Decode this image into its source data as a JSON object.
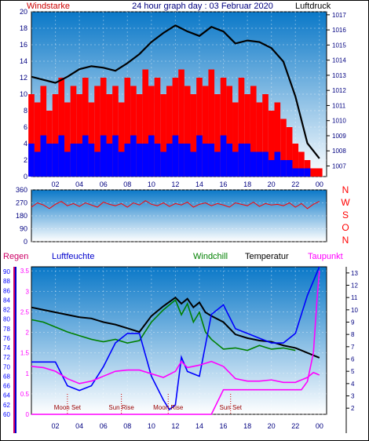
{
  "header": {
    "left": "Windstarke",
    "title": "24 hour graph day : 03 Februar 2020",
    "right": "Luftdruck"
  },
  "bottom_header": {
    "regen": "Regen",
    "luftfeuchte": "Luftfeuchte",
    "windchill": "Windchill",
    "temperatur": "Temperatur",
    "taupunkt": "Taupunkt"
  },
  "colors": {
    "panel_top": "#0a78c8",
    "panel_bottom": "#ffffff",
    "wind_gust": "#ff0000",
    "wind_avg": "#0000ff",
    "pressure": "#000000",
    "direction": "#ff0000",
    "temperature": "#000000",
    "windchill": "#008000",
    "humidity": "#0000ff",
    "dewpoint": "#ff00ff",
    "rain": "#ff00ff",
    "left_axis_text": "#000080",
    "right_axis_text": "#000080",
    "direction_label": "#ff0000"
  },
  "chart_data": [
    {
      "type": "line",
      "name": "wind_and_pressure",
      "x_ticks": [
        "02",
        "04",
        "06",
        "08",
        "10",
        "12",
        "14",
        "16",
        "18",
        "20",
        "22",
        "00"
      ],
      "ylim_left": [
        0,
        20
      ],
      "yticks_left": [
        "0",
        "2",
        "4",
        "6",
        "8",
        "10",
        "12",
        "14",
        "16",
        "18",
        "20"
      ],
      "ylim_right": [
        1006.3,
        1017.2
      ],
      "yticks_right": [
        "1007",
        "1008",
        "1009",
        "1010",
        "1011",
        "1012",
        "1013",
        "1014",
        "1015",
        "1016",
        "1017"
      ],
      "series": [
        {
          "name": "Windstarke",
          "axis": "left",
          "x": [
            0,
            0.5,
            1,
            1.5,
            2,
            2.5,
            3,
            3.5,
            4,
            4.5,
            5,
            5.5,
            6,
            6.5,
            7,
            7.5,
            8,
            8.5,
            9,
            9.5,
            10,
            10.5,
            11,
            11.5,
            12,
            12.5,
            13,
            13.5,
            14,
            14.5,
            15,
            15.5,
            16,
            16.5,
            17,
            17.5,
            18,
            18.5,
            19,
            19.5,
            20,
            20.5,
            21,
            21.5,
            22,
            22.5,
            23,
            23.5,
            24
          ],
          "values": [
            10,
            9,
            11,
            8,
            10,
            12,
            9,
            11,
            10,
            12,
            9,
            11,
            12,
            10,
            11,
            9,
            12,
            11,
            10,
            13,
            11,
            12,
            10,
            11,
            12,
            13,
            11,
            10,
            12,
            11,
            13,
            10,
            12,
            11,
            9,
            12,
            10,
            11,
            9,
            10,
            8,
            9,
            7,
            6,
            4,
            3,
            2,
            1,
            1
          ]
        },
        {
          "name": "Windmittel",
          "axis": "left",
          "x": [
            0,
            0.5,
            1,
            1.5,
            2,
            2.5,
            3,
            3.5,
            4,
            4.5,
            5,
            5.5,
            6,
            6.5,
            7,
            7.5,
            8,
            8.5,
            9,
            9.5,
            10,
            10.5,
            11,
            11.5,
            12,
            12.5,
            13,
            13.5,
            14,
            14.5,
            15,
            15.5,
            16,
            16.5,
            17,
            17.5,
            18,
            18.5,
            19,
            19.5,
            20,
            20.5,
            21,
            21.5,
            22,
            22.5,
            23,
            23.5,
            24
          ],
          "values": [
            4,
            3,
            5,
            4,
            4,
            5,
            3,
            4,
            4,
            5,
            4,
            3,
            5,
            4,
            5,
            3,
            4,
            5,
            4,
            4,
            5,
            4,
            3,
            4,
            5,
            4,
            4,
            3,
            5,
            4,
            4,
            3,
            5,
            4,
            3,
            4,
            4,
            3,
            3,
            3,
            2,
            3,
            2,
            2,
            1,
            1,
            1,
            0,
            0
          ]
        },
        {
          "name": "Luftdruck",
          "axis": "right",
          "x": [
            0,
            1,
            2,
            3,
            4,
            5,
            6,
            7,
            8,
            9,
            10,
            11,
            12,
            13,
            14,
            15,
            16,
            17,
            18,
            19,
            20,
            21,
            22,
            23,
            24
          ],
          "values": [
            1012.9,
            1012.7,
            1012.5,
            1012.9,
            1013.4,
            1013.6,
            1013.5,
            1013.3,
            1013.8,
            1014.4,
            1015.2,
            1015.8,
            1016.3,
            1015.9,
            1015.6,
            1016.2,
            1015.9,
            1015.1,
            1015.3,
            1015.2,
            1014.8,
            1013.9,
            1011.6,
            1008.5,
            1007.5
          ]
        }
      ]
    },
    {
      "type": "scatter",
      "name": "wind_direction",
      "x_ticks": [],
      "ylim": [
        0,
        360
      ],
      "yticks": [
        "0",
        "90",
        "180",
        "270",
        "360"
      ],
      "dir_labels": [
        "N",
        "W",
        "S",
        "O",
        "N"
      ],
      "series": [
        {
          "name": "Windrichtung",
          "x": [
            0,
            0.5,
            1,
            1.5,
            2,
            2.5,
            3,
            3.5,
            4,
            4.5,
            5,
            5.5,
            6,
            6.5,
            7,
            7.5,
            8,
            8.5,
            9,
            9.5,
            10,
            10.5,
            11,
            11.5,
            12,
            12.5,
            13,
            13.5,
            14,
            14.5,
            15,
            15.5,
            16,
            16.5,
            17,
            17.5,
            18,
            18.5,
            19,
            19.5,
            20,
            20.5,
            21,
            21.5,
            22,
            22.5,
            23,
            23.5,
            24
          ],
          "values": [
            240,
            270,
            255,
            230,
            260,
            280,
            250,
            265,
            245,
            270,
            255,
            240,
            275,
            260,
            250,
            265,
            240,
            270,
            255,
            285,
            260,
            250,
            270,
            245,
            265,
            255,
            275,
            240,
            260,
            270,
            250,
            265,
            255,
            240,
            270,
            260,
            250,
            275,
            245,
            265,
            255,
            260,
            250,
            270,
            240,
            265,
            230,
            260,
            280
          ]
        }
      ]
    },
    {
      "type": "line",
      "name": "humidity_temperature",
      "x_ticks": [
        "02",
        "04",
        "06",
        "08",
        "10",
        "12",
        "14",
        "16",
        "18",
        "20",
        "22",
        "00"
      ],
      "ylim_rain": [
        0,
        3.6
      ],
      "yticks_rain": [
        "0",
        "0.5",
        "1",
        "1.5",
        "2",
        "2.5",
        "3",
        "3.5"
      ],
      "ylim_humidity": [
        60,
        91
      ],
      "yticks_humidity": [
        "60",
        "62",
        "64",
        "66",
        "68",
        "70",
        "72",
        "74",
        "76",
        "78",
        "80",
        "82",
        "84",
        "86",
        "88",
        "90"
      ],
      "ylim_temp": [
        1.5,
        13.5
      ],
      "yticks_temp": [
        "2",
        "3",
        "4",
        "5",
        "6",
        "7",
        "8",
        "9",
        "10",
        "11",
        "12",
        "13"
      ],
      "annotations": [
        {
          "text": "Moon Set",
          "x": 3.0
        },
        {
          "text": "Sun Rise",
          "x": 7.5
        },
        {
          "text": "Moon Rise",
          "x": 11.4
        },
        {
          "text": "Sun Set",
          "x": 16.6
        }
      ],
      "series": [
        {
          "name": "Temperatur",
          "axis": "temp",
          "x": [
            0,
            1,
            2,
            3,
            4,
            5,
            6,
            7,
            8,
            9,
            10,
            11,
            12,
            12.5,
            13,
            13.5,
            14,
            14.5,
            15,
            16,
            17,
            18,
            19,
            20,
            21,
            22,
            23,
            24
          ],
          "values": [
            10.2,
            10.0,
            9.8,
            9.6,
            9.4,
            9.3,
            9.0,
            8.8,
            8.5,
            8.2,
            9.5,
            10.3,
            11.0,
            10.5,
            10.9,
            10.2,
            10.6,
            9.8,
            9.5,
            9.0,
            8.0,
            7.7,
            7.5,
            7.4,
            7.1,
            6.9,
            6.5,
            6.1
          ]
        },
        {
          "name": "Windchill",
          "axis": "temp",
          "x": [
            0,
            1,
            2,
            3,
            4,
            5,
            6,
            7,
            8,
            9,
            10,
            11,
            12,
            12.5,
            13,
            13.5,
            14,
            14.5,
            15,
            16,
            17,
            18,
            19,
            20,
            21,
            22
          ],
          "values": [
            9.2,
            9.0,
            8.6,
            8.2,
            7.9,
            7.6,
            7.4,
            7.6,
            7.3,
            7.5,
            9.0,
            10.0,
            10.8,
            9.6,
            10.5,
            9.0,
            9.8,
            8.2,
            7.6,
            6.8,
            6.9,
            6.7,
            7.1,
            6.8,
            6.9,
            6.7
          ]
        },
        {
          "name": "Luftfeuchte",
          "axis": "humidity",
          "x": [
            0,
            1,
            2,
            3,
            4,
            5,
            6,
            7,
            8,
            9,
            10,
            11,
            11.5,
            12,
            12.5,
            13,
            14,
            15,
            16,
            17,
            18,
            19,
            20,
            21,
            22,
            23,
            24
          ],
          "values": [
            71,
            71,
            71,
            66,
            65,
            66,
            70,
            75,
            77,
            77,
            68,
            63,
            61,
            62,
            72,
            69,
            68,
            81,
            83,
            78,
            77,
            76,
            75,
            75,
            77,
            85,
            91
          ]
        },
        {
          "name": "Taupunkt",
          "axis": "temp",
          "x": [
            0,
            1,
            2,
            3,
            4,
            5,
            6,
            7,
            8,
            9,
            10,
            11,
            12,
            12.5,
            13,
            14,
            15,
            16,
            17,
            18,
            19,
            20,
            21,
            22,
            23,
            23.5,
            24
          ],
          "values": [
            5.4,
            5.3,
            5.0,
            4.4,
            4.0,
            4.2,
            4.6,
            5.0,
            5.1,
            5.1,
            4.8,
            4.5,
            5.0,
            5.8,
            5.3,
            5.5,
            5.8,
            5.4,
            4.4,
            4.2,
            4.2,
            4.3,
            4.1,
            4.1,
            4.5,
            4.9,
            4.7
          ]
        },
        {
          "name": "Regen",
          "axis": "rain",
          "x": [
            0,
            15,
            15.5,
            16,
            22.5,
            23,
            23.5,
            23.8,
            24
          ],
          "values": [
            0,
            0,
            0.3,
            0.6,
            0.6,
            0.8,
            1.5,
            2.8,
            3.5
          ]
        }
      ]
    }
  ]
}
